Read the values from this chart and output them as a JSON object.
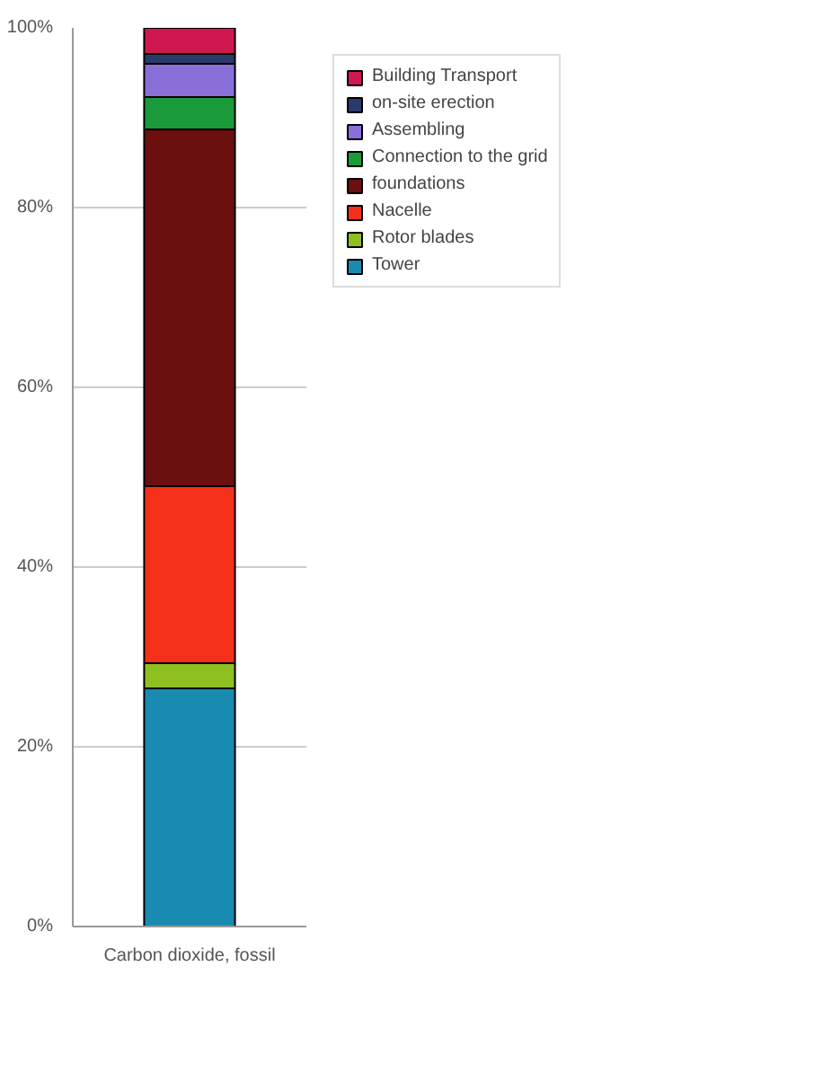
{
  "chart_data": {
    "type": "bar",
    "stacked": true,
    "categories": [
      "Carbon dioxide, fossil"
    ],
    "series": [
      {
        "name": "Tower",
        "color": "#1a8bb0",
        "values": [
          26.5
        ]
      },
      {
        "name": "Rotor blades",
        "color": "#8dc021",
        "values": [
          2.8
        ]
      },
      {
        "name": "Nacelle",
        "color": "#f5301a",
        "values": [
          19.7
        ]
      },
      {
        "name": "foundations",
        "color": "#6b0f0f",
        "values": [
          39.7
        ]
      },
      {
        "name": "Connection to the grid",
        "color": "#1a9a3a",
        "values": [
          3.6
        ]
      },
      {
        "name": "Assembling",
        "color": "#8a6fd8",
        "values": [
          3.7
        ]
      },
      {
        "name": "on-site erection",
        "color": "#2a3a6a",
        "values": [
          1.1
        ]
      },
      {
        "name": "Building Transport",
        "color": "#d01850",
        "values": [
          2.9
        ]
      }
    ],
    "ylim": [
      0,
      100
    ],
    "yticks": [
      {
        "value": 0,
        "label": "0%"
      },
      {
        "value": 20,
        "label": "20%"
      },
      {
        "value": 40,
        "label": "40%"
      },
      {
        "value": 60,
        "label": "60%"
      },
      {
        "value": 80,
        "label": "80%"
      },
      {
        "value": 100,
        "label": "100%"
      }
    ],
    "grid": "y",
    "legend": "right"
  }
}
